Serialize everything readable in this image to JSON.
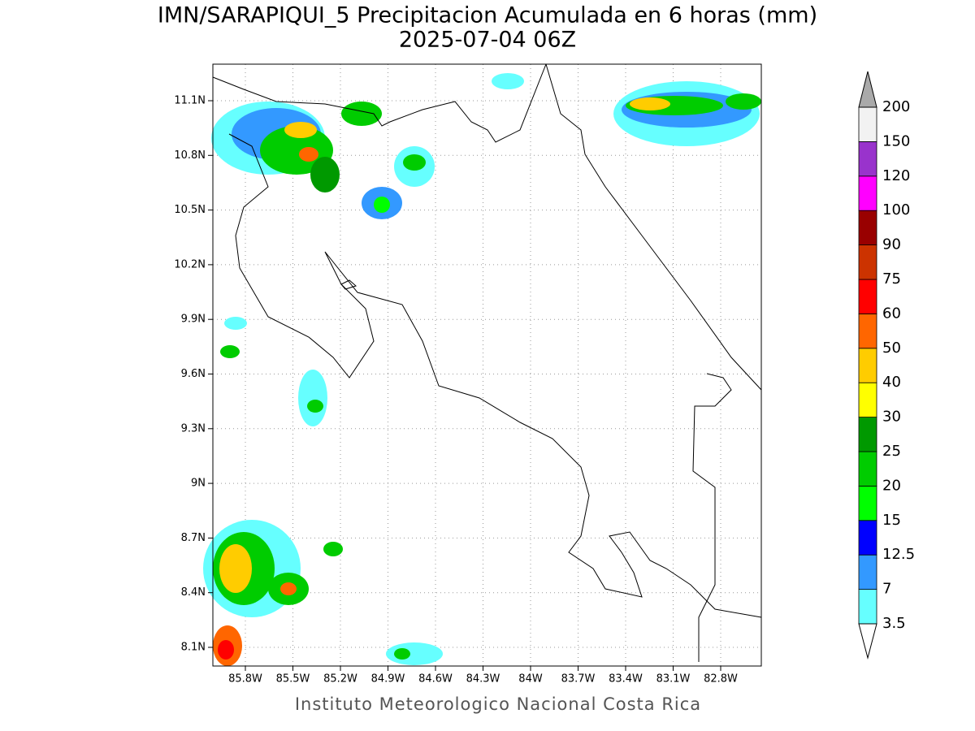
{
  "header": {
    "title": "IMN/SARAPIQUI_5 Precipitacion Acumulada en 6 horas (mm)",
    "subtitle": "2025-07-04 06Z"
  },
  "map": {
    "lat_ticks": [
      "11.1N",
      "10.8N",
      "10.5N",
      "10.2N",
      "9.9N",
      "9.6N",
      "9.3N",
      "9N",
      "8.7N",
      "8.4N",
      "8.1N"
    ],
    "lon_ticks": [
      "85.8W",
      "85.5W",
      "85.2W",
      "84.9W",
      "84.6W",
      "84.3W",
      "84W",
      "83.7W",
      "83.4W",
      "83.1W",
      "82.8W"
    ]
  },
  "colorbar": {
    "levels": [
      3.5,
      7,
      12.5,
      15,
      20,
      25,
      30,
      40,
      50,
      60,
      75,
      90,
      100,
      120,
      150,
      200
    ],
    "colors": [
      "#66ffff",
      "#3399ff",
      "#0000ff",
      "#00ff00",
      "#00cc00",
      "#009900",
      "#ffff00",
      "#ffcc00",
      "#ff6600",
      "#ff0000",
      "#cc3300",
      "#990000",
      "#ff00ff",
      "#9933cc",
      "#f2f2f2"
    ],
    "under_color": "#ffffff",
    "over_color": "#aaaaaa"
  },
  "footer": "Instituto Meteorologico Nacional Costa Rica"
}
